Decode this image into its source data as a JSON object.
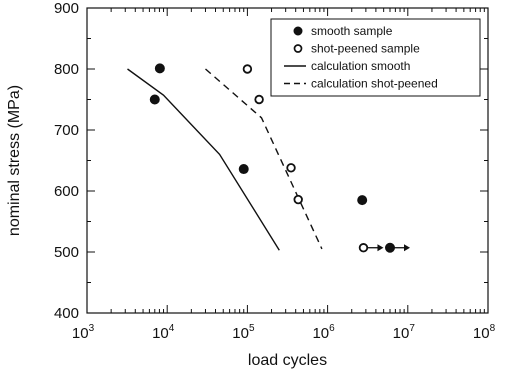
{
  "chart_data": {
    "type": "scatter",
    "xlabel": "load cycles",
    "ylabel": "nominal stress (MPa)",
    "xscale": "log",
    "xlim": [
      1000,
      100000000
    ],
    "ylim": [
      400,
      900
    ],
    "grid": false,
    "legend_position": "top-right",
    "x_ticks": [
      {
        "value": 1000,
        "base": "10",
        "exp": "3"
      },
      {
        "value": 10000,
        "base": "10",
        "exp": "4"
      },
      {
        "value": 100000,
        "base": "10",
        "exp": "5"
      },
      {
        "value": 1000000,
        "base": "10",
        "exp": "6"
      },
      {
        "value": 10000000,
        "base": "10",
        "exp": "7"
      },
      {
        "value": 100000000,
        "base": "10",
        "exp": "8"
      }
    ],
    "y_ticks": [
      {
        "value": 400,
        "label": "400"
      },
      {
        "value": 500,
        "label": "500"
      },
      {
        "value": 600,
        "label": "600"
      },
      {
        "value": 700,
        "label": "700"
      },
      {
        "value": 800,
        "label": "800"
      },
      {
        "value": 900,
        "label": "900"
      }
    ],
    "series": [
      {
        "name": "smooth sample",
        "kind": "points",
        "marker": "filled-circle",
        "color": "#111111",
        "points": [
          {
            "x": 8100,
            "y": 801
          },
          {
            "x": 7000,
            "y": 750
          },
          {
            "x": 90000,
            "y": 636
          },
          {
            "x": 2700000,
            "y": 585
          },
          {
            "x": 6000000,
            "y": 507,
            "runout": true
          }
        ]
      },
      {
        "name": "shot-peened sample",
        "kind": "points",
        "marker": "open-circle",
        "color": "#111111",
        "points": [
          {
            "x": 100000,
            "y": 800
          },
          {
            "x": 140000,
            "y": 750
          },
          {
            "x": 350000,
            "y": 638
          },
          {
            "x": 430000,
            "y": 586
          },
          {
            "x": 2800000,
            "y": 507,
            "runout": true
          }
        ]
      },
      {
        "name": "calculation smooth",
        "kind": "line",
        "dash": "solid",
        "color": "#111111",
        "points": [
          {
            "x": 3200,
            "y": 800
          },
          {
            "x": 9000,
            "y": 757
          },
          {
            "x": 45000,
            "y": 660
          },
          {
            "x": 250000,
            "y": 503
          }
        ]
      },
      {
        "name": "calculation shot-peened",
        "kind": "line",
        "dash": "dashed",
        "color": "#111111",
        "points": [
          {
            "x": 30000,
            "y": 800
          },
          {
            "x": 150000,
            "y": 720
          },
          {
            "x": 850000,
            "y": 505
          }
        ]
      }
    ]
  }
}
